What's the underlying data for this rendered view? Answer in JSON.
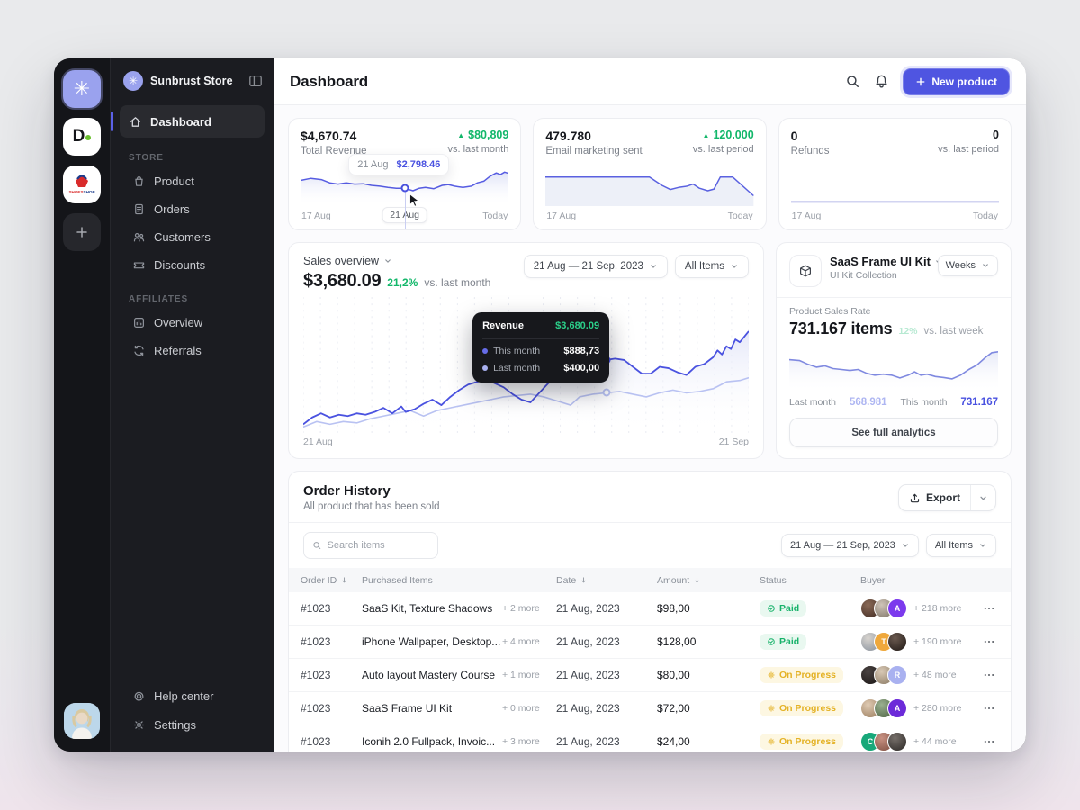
{
  "icons": {
    "logo_flower": "✳"
  },
  "rail": {
    "d_label": "D",
    "shoes_text_a": "SHOES",
    "shoes_text_b": "SHOP"
  },
  "sidebar": {
    "store_name": "Sunbrust Store",
    "dashboard_label": "Dashboard",
    "sections": [
      {
        "label": "STORE",
        "items": [
          {
            "icon": "bag",
            "label": "Product"
          },
          {
            "icon": "file",
            "label": "Orders"
          },
          {
            "icon": "users",
            "label": "Customers"
          },
          {
            "icon": "ticket",
            "label": "Discounts"
          }
        ]
      },
      {
        "label": "AFFILIATES",
        "items": [
          {
            "icon": "chart",
            "label": "Overview"
          },
          {
            "icon": "refresh",
            "label": "Referrals"
          }
        ]
      }
    ],
    "footer_items": [
      {
        "icon": "at",
        "label": "Help center"
      },
      {
        "icon": "gear",
        "label": "Settings"
      }
    ]
  },
  "header": {
    "title": "Dashboard",
    "new_product_label": "New product"
  },
  "stat_cards": [
    {
      "value": "$4,670.74",
      "label": "Total Revenue",
      "delta": "$80,809",
      "compare": "vs. last month",
      "axis_start": "17 Aug",
      "axis_mid": "21 Aug",
      "axis_end": "Today",
      "tooltip": {
        "date": "21 Aug",
        "value": "$2,798.46"
      },
      "marker": [
        50,
        57
      ],
      "points": [
        [
          0,
          38
        ],
        [
          5,
          33
        ],
        [
          10,
          36
        ],
        [
          14,
          44
        ],
        [
          18,
          47
        ],
        [
          22,
          44
        ],
        [
          26,
          47
        ],
        [
          30,
          46
        ],
        [
          34,
          50
        ],
        [
          38,
          52
        ],
        [
          42,
          55
        ],
        [
          46,
          57
        ],
        [
          50,
          57
        ],
        [
          54,
          63
        ],
        [
          57,
          57
        ],
        [
          60,
          55
        ],
        [
          64,
          58
        ],
        [
          68,
          50
        ],
        [
          71,
          48
        ],
        [
          74,
          52
        ],
        [
          78,
          55
        ],
        [
          82,
          52
        ],
        [
          85,
          44
        ],
        [
          88,
          40
        ],
        [
          91,
          28
        ],
        [
          94,
          20
        ],
        [
          96,
          24
        ],
        [
          98,
          18
        ],
        [
          100,
          21
        ]
      ]
    },
    {
      "value": "479.780",
      "label": "Email marketing sent",
      "delta": "120.000",
      "compare": "vs. last period",
      "axis_start": "17 Aug",
      "axis_end": "Today",
      "points": [
        [
          0,
          30
        ],
        [
          50,
          30
        ],
        [
          56,
          50
        ],
        [
          60,
          60
        ],
        [
          64,
          55
        ],
        [
          68,
          52
        ],
        [
          71,
          47
        ],
        [
          74,
          57
        ],
        [
          78,
          63
        ],
        [
          81,
          59
        ],
        [
          84,
          30
        ],
        [
          90,
          30
        ],
        [
          100,
          75
        ]
      ]
    },
    {
      "value": "0",
      "label": "Refunds",
      "delta": "0",
      "compare": "vs. last period",
      "axis_start": "17 Aug",
      "axis_end": "Today",
      "points": [
        [
          0,
          90
        ],
        [
          100,
          90
        ]
      ]
    }
  ],
  "sales": {
    "title": "Sales overview",
    "value": "$3,680.09",
    "delta": "21,2%",
    "compare": "vs. last month",
    "date_filter": "21 Aug — 21 Sep, 2023",
    "items_filter": "All Items",
    "axis_start": "21 Aug",
    "axis_end": "21 Sep",
    "tooltip": {
      "title": "Revenue",
      "value": "$3,680.09",
      "rows": [
        {
          "label": "This month",
          "value": "$888,73"
        },
        {
          "label": "Last month",
          "value": "$400,00"
        }
      ]
    },
    "marker_dark": [
      68,
      46
    ],
    "marker_light": [
      68,
      70
    ],
    "series": {
      "this_month": [
        [
          0,
          93
        ],
        [
          2,
          88
        ],
        [
          4,
          85
        ],
        [
          6,
          88
        ],
        [
          8,
          86
        ],
        [
          10,
          87
        ],
        [
          12,
          85
        ],
        [
          14,
          86
        ],
        [
          16,
          84
        ],
        [
          18,
          81
        ],
        [
          20,
          85
        ],
        [
          22,
          80
        ],
        [
          23,
          84
        ],
        [
          25,
          82
        ],
        [
          27,
          78
        ],
        [
          29,
          75
        ],
        [
          31,
          79
        ],
        [
          33,
          73
        ],
        [
          35,
          68
        ],
        [
          37,
          64
        ],
        [
          39,
          62
        ],
        [
          41,
          60
        ],
        [
          43,
          63
        ],
        [
          45,
          66
        ],
        [
          47,
          71
        ],
        [
          49,
          75
        ],
        [
          51,
          77
        ],
        [
          53,
          70
        ],
        [
          55,
          63
        ],
        [
          57,
          57
        ],
        [
          59,
          54
        ],
        [
          61,
          50
        ],
        [
          63,
          47
        ],
        [
          65,
          46
        ],
        [
          68,
          46
        ],
        [
          70,
          45
        ],
        [
          72,
          46
        ],
        [
          74,
          51
        ],
        [
          76,
          56
        ],
        [
          78,
          56
        ],
        [
          80,
          51
        ],
        [
          82,
          52
        ],
        [
          84,
          55
        ],
        [
          86,
          57
        ],
        [
          88,
          51
        ],
        [
          90,
          49
        ],
        [
          92,
          44
        ],
        [
          93,
          39
        ],
        [
          94,
          42
        ],
        [
          95,
          36
        ],
        [
          96,
          38
        ],
        [
          97,
          31
        ],
        [
          98,
          33
        ],
        [
          100,
          25
        ]
      ],
      "last_month": [
        [
          0,
          95
        ],
        [
          3,
          91
        ],
        [
          6,
          93
        ],
        [
          9,
          91
        ],
        [
          12,
          92
        ],
        [
          15,
          89
        ],
        [
          18,
          87
        ],
        [
          21,
          85
        ],
        [
          24,
          83
        ],
        [
          27,
          87
        ],
        [
          30,
          83
        ],
        [
          33,
          81
        ],
        [
          36,
          79
        ],
        [
          39,
          77
        ],
        [
          42,
          75
        ],
        [
          45,
          73
        ],
        [
          48,
          72
        ],
        [
          51,
          71
        ],
        [
          54,
          73
        ],
        [
          57,
          76
        ],
        [
          60,
          79
        ],
        [
          62,
          73
        ],
        [
          65,
          71
        ],
        [
          68,
          70
        ],
        [
          71,
          69
        ],
        [
          74,
          71
        ],
        [
          77,
          73
        ],
        [
          80,
          70
        ],
        [
          83,
          68
        ],
        [
          86,
          70
        ],
        [
          89,
          69
        ],
        [
          92,
          67
        ],
        [
          95,
          62
        ],
        [
          98,
          61
        ],
        [
          100,
          59
        ]
      ]
    }
  },
  "product_card": {
    "title": "SaaS Frame UI Kit",
    "subtitle": "UI Kit Collection",
    "period": "Weeks",
    "metric_label": "Product Sales Rate",
    "metric_value": "731.167 items",
    "metric_badge": "12%",
    "compare": "vs. last week",
    "points": [
      [
        0,
        30
      ],
      [
        5,
        32
      ],
      [
        9,
        40
      ],
      [
        13,
        46
      ],
      [
        17,
        43
      ],
      [
        21,
        49
      ],
      [
        25,
        51
      ],
      [
        29,
        53
      ],
      [
        33,
        51
      ],
      [
        37,
        59
      ],
      [
        41,
        63
      ],
      [
        45,
        61
      ],
      [
        49,
        63
      ],
      [
        53,
        69
      ],
      [
        57,
        63
      ],
      [
        60,
        56
      ],
      [
        63,
        63
      ],
      [
        66,
        61
      ],
      [
        70,
        66
      ],
      [
        74,
        68
      ],
      [
        78,
        71
      ],
      [
        82,
        63
      ],
      [
        86,
        51
      ],
      [
        90,
        41
      ],
      [
        94,
        25
      ],
      [
        97,
        15
      ],
      [
        100,
        13
      ]
    ],
    "footer": [
      {
        "label": "Last month",
        "value": "568.981"
      },
      {
        "label": "This month",
        "value": "731.167"
      }
    ],
    "cta": "See full analytics"
  },
  "orders": {
    "title": "Order History",
    "subtitle": "All product that has been sold",
    "export_label": "Export",
    "search_placeholder": "Search items",
    "date_filter": "21 Aug — 21 Sep, 2023",
    "items_filter": "All Items",
    "columns": [
      {
        "label": "Order ID",
        "sort": true
      },
      {
        "label": "Purchased Items",
        "sort": false
      },
      {
        "label": "Date",
        "sort": true
      },
      {
        "label": "Amount",
        "sort": true
      },
      {
        "label": "Status",
        "sort": false
      },
      {
        "label": "Buyer",
        "sort": false
      }
    ],
    "rows": [
      {
        "id": "#1023",
        "item": "SaaS Kit, Texture Shadows",
        "more": "+ 2 more",
        "date": "21 Aug, 2023",
        "amount": "$98,00",
        "status": "Paid",
        "buyers_more": "+ 218 more",
        "avatars": [
          {
            "t": "p",
            "c": [
              "#8a6a57",
              "#51392e"
            ]
          },
          {
            "t": "p",
            "c": [
              "#cfc4b8",
              "#8f8578"
            ]
          },
          {
            "t": "l",
            "ch": "A",
            "c": "#7c3aed"
          }
        ]
      },
      {
        "id": "#1023",
        "item": "iPhone Wallpaper, Desktop...",
        "more": "+ 4 more",
        "date": "21 Aug, 2023",
        "amount": "$128,00",
        "status": "Paid",
        "buyers_more": "+ 190 more",
        "avatars": [
          {
            "t": "p",
            "c": [
              "#d8d4cf",
              "#9aa0a8"
            ]
          },
          {
            "t": "l",
            "ch": "T",
            "c": "#efa83c"
          },
          {
            "t": "p",
            "c": [
              "#6b5a50",
              "#2f2621"
            ]
          }
        ]
      },
      {
        "id": "#1023",
        "item": "Auto layout Mastery Course",
        "more": "+ 1 more",
        "date": "21 Aug, 2023",
        "amount": "$80,00",
        "status": "On Progress",
        "buyers_more": "+ 48 more",
        "avatars": [
          {
            "t": "p",
            "c": [
              "#4a4342",
              "#241f1e"
            ]
          },
          {
            "t": "p",
            "c": [
              "#d9c9b6",
              "#9a8a74"
            ]
          },
          {
            "t": "l",
            "ch": "R",
            "c": "#a9b1f0"
          }
        ]
      },
      {
        "id": "#1023",
        "item": "SaaS Frame UI Kit",
        "more": "+ 0 more",
        "date": "21 Aug, 2023",
        "amount": "$72,00",
        "status": "On Progress",
        "buyers_more": "+ 280 more",
        "avatars": [
          {
            "t": "p",
            "c": [
              "#e0cbb4",
              "#a98d6f"
            ]
          },
          {
            "t": "p",
            "c": [
              "#9ab08f",
              "#5d7253"
            ]
          },
          {
            "t": "l",
            "ch": "A",
            "c": "#6c2bd9"
          }
        ]
      },
      {
        "id": "#1023",
        "item": "Iconih 2.0 Fullpack, Invoic...",
        "more": "+ 3 more",
        "date": "21 Aug, 2023",
        "amount": "$24,00",
        "status": "On Progress",
        "buyers_more": "+ 44 more",
        "avatars": [
          {
            "t": "l",
            "ch": "C",
            "c": "#18a87a"
          },
          {
            "t": "p",
            "c": [
              "#c89182",
              "#8e5d4f"
            ]
          },
          {
            "t": "p",
            "c": [
              "#77706b",
              "#3b3734"
            ]
          }
        ]
      }
    ]
  },
  "colors": {
    "accent": "#4f55e1",
    "green": "#12b76a",
    "amber": "#e4b226",
    "line_dark": "#4a52e0",
    "line_light": "#b9c2f2"
  }
}
